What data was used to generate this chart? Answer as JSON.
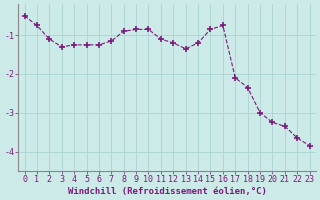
{
  "x": [
    0,
    1,
    2,
    3,
    4,
    5,
    6,
    7,
    8,
    9,
    10,
    11,
    12,
    13,
    14,
    15,
    16,
    17,
    18,
    19,
    20,
    21,
    22,
    23
  ],
  "y": [
    -0.5,
    -0.75,
    -1.1,
    -1.3,
    -1.25,
    -1.25,
    -1.25,
    -1.15,
    -0.9,
    -0.85,
    -0.85,
    -1.1,
    -1.2,
    -1.35,
    -1.2,
    -0.85,
    -0.75,
    -2.1,
    -2.35,
    -3.0,
    -3.25,
    -3.35,
    -3.65,
    -3.85
  ],
  "line_color": "#7b1a7b",
  "marker": "+",
  "marker_size": 4,
  "marker_lw": 1.2,
  "bg_color": "#cceae7",
  "grid_color": "#aad4d0",
  "xlabel": "Windchill (Refroidissement éolien,°C)",
  "xlabel_fontsize": 6.5,
  "tick_fontsize": 6,
  "ylim": [
    -4.5,
    -0.2
  ],
  "xlim": [
    -0.5,
    23.5
  ],
  "yticks": [
    -4,
    -3,
    -2,
    -1
  ],
  "xticks": [
    0,
    1,
    2,
    3,
    4,
    5,
    6,
    7,
    8,
    9,
    10,
    11,
    12,
    13,
    14,
    15,
    16,
    17,
    18,
    19,
    20,
    21,
    22,
    23
  ]
}
